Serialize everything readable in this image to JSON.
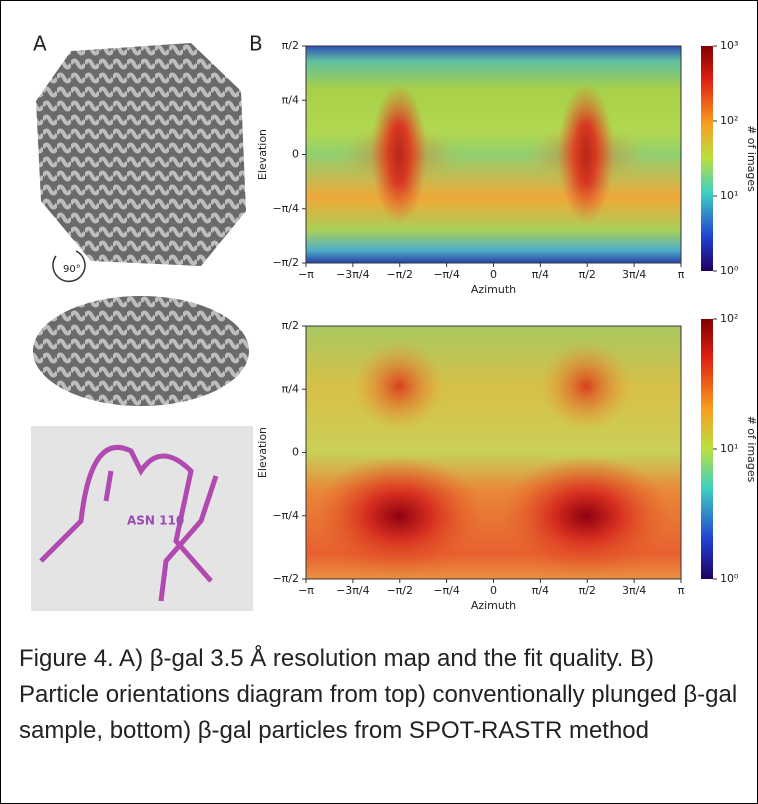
{
  "panel_a": {
    "label": "A",
    "rotation": "90°",
    "residue": "ASN 110"
  },
  "panel_b": {
    "label": "B",
    "plots": [
      {
        "y_label": "Elevation",
        "x_label": "Azimuth",
        "colorbar_label": "# of images",
        "xticks": [
          "−π",
          "−3π/4",
          "−π/2",
          "−π/4",
          "0",
          "π/4",
          "π/2",
          "3π/4",
          "π"
        ],
        "yticks": [
          "π/2",
          "π/4",
          "0",
          "−π/4",
          "−π/2"
        ],
        "colorbar_ticks": [
          "10³",
          "10²",
          "10¹",
          "10⁰"
        ]
      },
      {
        "y_label": "Elevation",
        "x_label": "Azimuth",
        "colorbar_label": "# of images",
        "xticks": [
          "−π",
          "−3π/4",
          "−π/2",
          "−π/4",
          "0",
          "π/4",
          "π/2",
          "3π/4",
          "π"
        ],
        "yticks": [
          "π/2",
          "π/4",
          "0",
          "−π/4",
          "−π/2"
        ],
        "colorbar_ticks": [
          "10²",
          "10¹",
          "10⁰"
        ]
      }
    ]
  },
  "caption": "Figure 4. A) β-gal 3.5 Å resolution map and the fit quality. B) Particle orientations diagram from top) conventionally plunged β-gal sample, bottom) β-gal particles from SPOT-RASTR method"
}
